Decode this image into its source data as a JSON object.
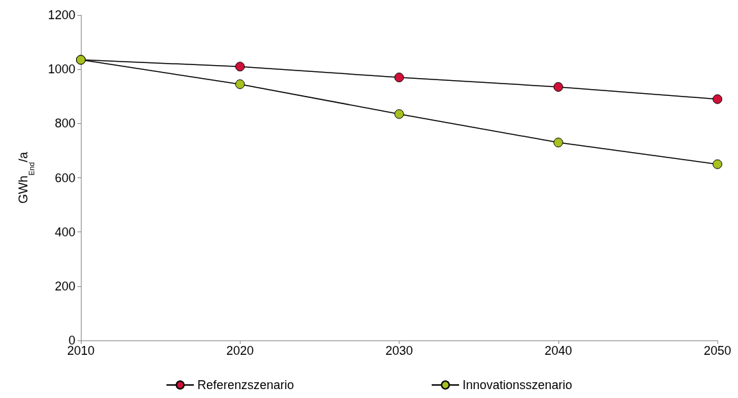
{
  "chart_data": {
    "type": "line",
    "ylabel": "GWh$_{End}$/a",
    "x": [
      2010,
      2020,
      2030,
      2040,
      2050
    ],
    "xlim": [
      2010,
      2050
    ],
    "xticks": [
      2010,
      2020,
      2030,
      2040,
      2050
    ],
    "ylim": [
      0,
      1200
    ],
    "yticks": [
      0,
      200,
      400,
      600,
      800,
      1000,
      1200
    ],
    "grid": false,
    "legend": "bottom",
    "marker": "circle",
    "line_style": "solid",
    "series": [
      {
        "name": "Referenzszenario",
        "color": "#d0103a",
        "values": [
          1035,
          1010,
          970,
          935,
          890
        ]
      },
      {
        "name": "Innovationsszenario",
        "color": "#a8c020",
        "values": [
          1035,
          945,
          835,
          730,
          650
        ]
      }
    ]
  }
}
